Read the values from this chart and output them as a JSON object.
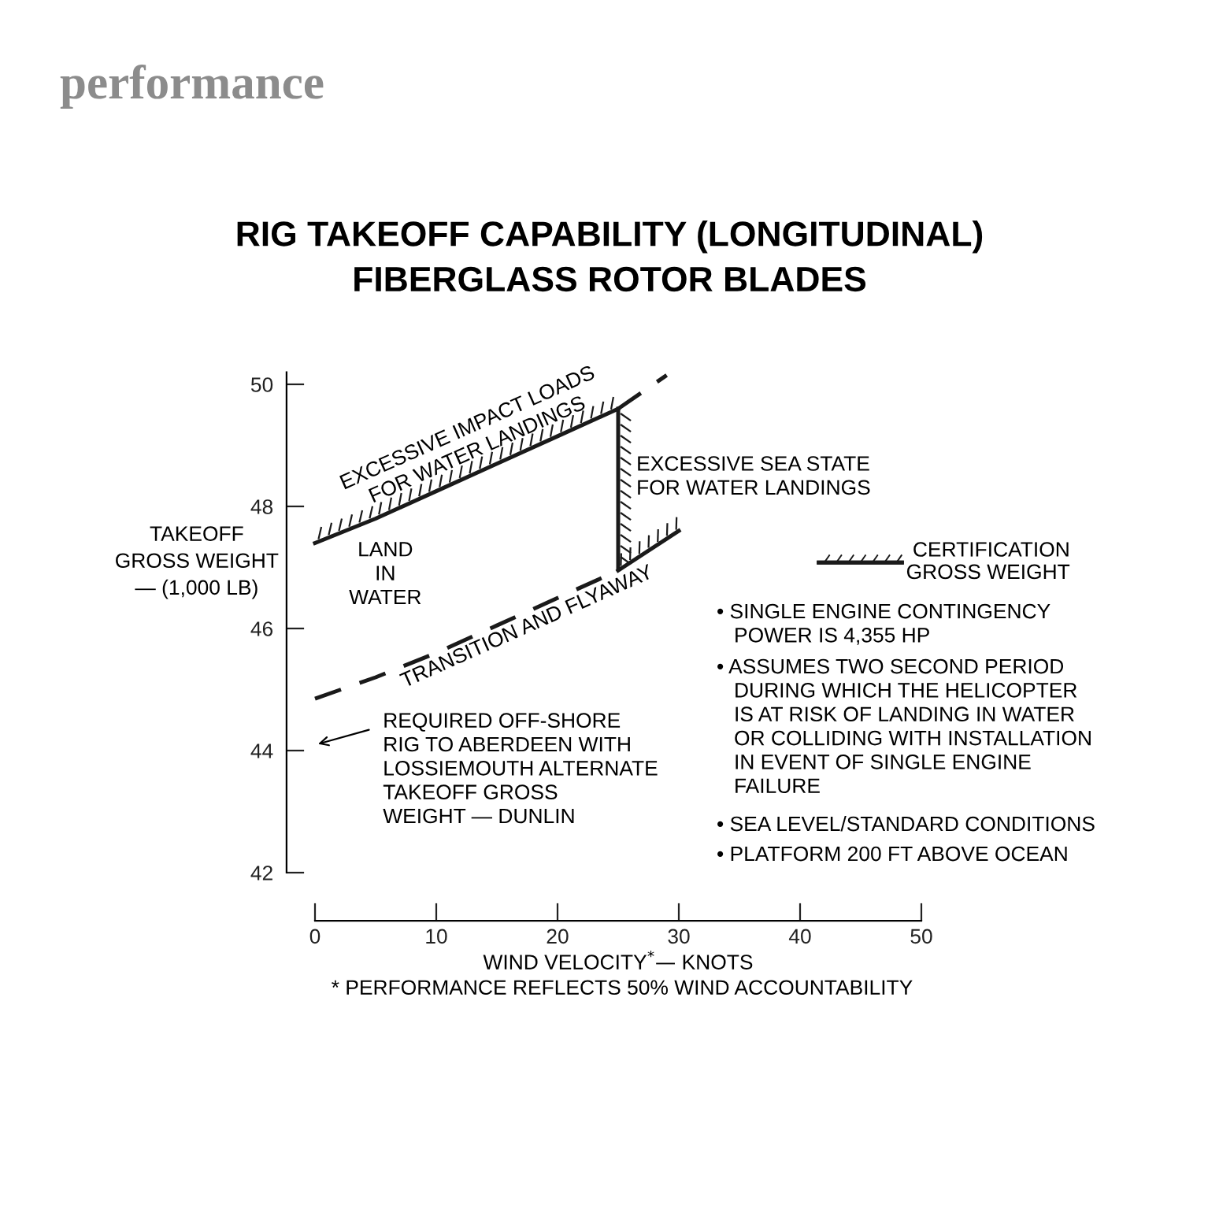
{
  "chart_data": {
    "type": "line",
    "title": "RIG TAKEOFF CAPABILITY (LONGITUDINAL)\nFIBERGLASS ROTOR BLADES",
    "subtitle": "performance",
    "xlabel": "WIND VELOCITY$^{*}$— KNOTS",
    "ylabel": "TAKEOFF\nGROSS WEIGHT\n— (1,000 LB)",
    "xlim": [
      0,
      50
    ],
    "xticks": [
      0,
      10,
      20,
      30,
      40,
      50
    ],
    "ylim": [
      42,
      50.2
    ],
    "yticks": [
      42,
      44,
      46,
      48,
      50
    ],
    "grid": false,
    "legend": "right",
    "marker": "none",
    "series": [
      {
        "name": "CERTIFICATION\nGROSS WEIGHT",
        "color": "#1a1a1a",
        "line_style": "solid",
        "x": [
          0,
          5,
          10,
          15,
          20,
          25
        ],
        "values": [
          47.4,
          47.8,
          48.25,
          48.7,
          49.15,
          49.6
        ]
      },
      {
        "color": "#1a1a1a",
        "line_style": "dashed",
        "x": [
          25,
          29
        ],
        "values": [
          49.6,
          50.15
        ]
      },
      {
        "color": "#1a1a1a",
        "line_style": "solid",
        "x": [
          25,
          25
        ],
        "values": [
          49.6,
          47.0
        ]
      },
      {
        "color": "#1a1a1a",
        "line_style": "dashed",
        "x": [
          0,
          5,
          10,
          15,
          20,
          25
        ],
        "values": [
          44.85,
          45.2,
          45.6,
          46.05,
          46.5,
          46.95
        ]
      },
      {
        "color": "#1a1a1a",
        "line_style": "solid",
        "x": [
          25,
          30
        ],
        "values": [
          46.95,
          47.6
        ]
      }
    ],
    "annotations": [
      "EXCESSIVE IMPACT LOADS\nFOR WATER LANDINGS",
      "EXCESSIVE SEA STATE\nFOR WATER LANDINGS",
      "LAND\nIN\nWATER",
      "TRANSITION AND FLYAWAY",
      "REQUIRED OFF-SHORE\nRIG TO ABERDEEN WITH\nLOSSIEMOUTH ALTERNATE\nTAKEOFF GROSS\nWEIGHT — DUNLIN",
      "• SINGLE ENGINE CONTINGENCY\n   POWER IS 4,355 HP",
      "• ASSUMES TWO SECOND PERIOD\n   DURING WHICH THE HELICOPTER\n   IS AT RISK OF LANDING IN WATER\n   OR COLLIDING WITH INSTALLATION\n   IN EVENT OF SINGLE ENGINE\n   FAILURE",
      "• SEA LEVEL/STANDARD CONDITIONS",
      "• PLATFORM 200 FT ABOVE OCEAN",
      "* PERFORMANCE REFLECTS 50% WIND ACCOUNTABILITY"
    ]
  }
}
